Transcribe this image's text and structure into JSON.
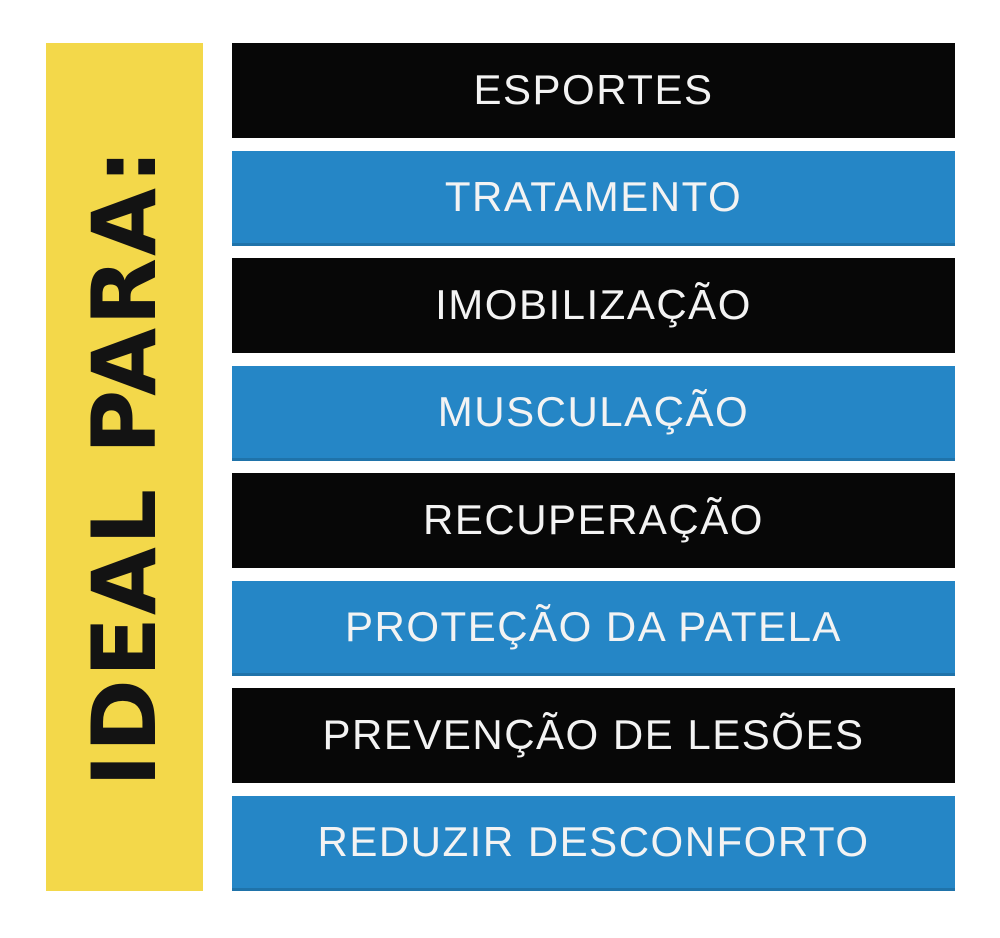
{
  "page": {
    "background": "#ffffff"
  },
  "banner": {
    "label": "IDEAL PARA:",
    "background": "#F3D84A",
    "text_color": "#131313"
  },
  "bars": {
    "colors": {
      "black": "#070707",
      "blue": "#2586C6",
      "text": "#F3F3F3"
    },
    "items": [
      {
        "label": "ESPORTES",
        "variant": "black"
      },
      {
        "label": "TRATAMENTO",
        "variant": "blue"
      },
      {
        "label": "IMOBILIZAÇÃO",
        "variant": "black"
      },
      {
        "label": "MUSCULAÇÃO",
        "variant": "blue"
      },
      {
        "label": "RECUPERAÇÃO",
        "variant": "black"
      },
      {
        "label": "PROTEÇÃO DA PATELA",
        "variant": "blue"
      },
      {
        "label": "PREVENÇÃO DE LESÕES",
        "variant": "black"
      },
      {
        "label": "REDUZIR DESCONFORTO",
        "variant": "blue"
      }
    ]
  }
}
